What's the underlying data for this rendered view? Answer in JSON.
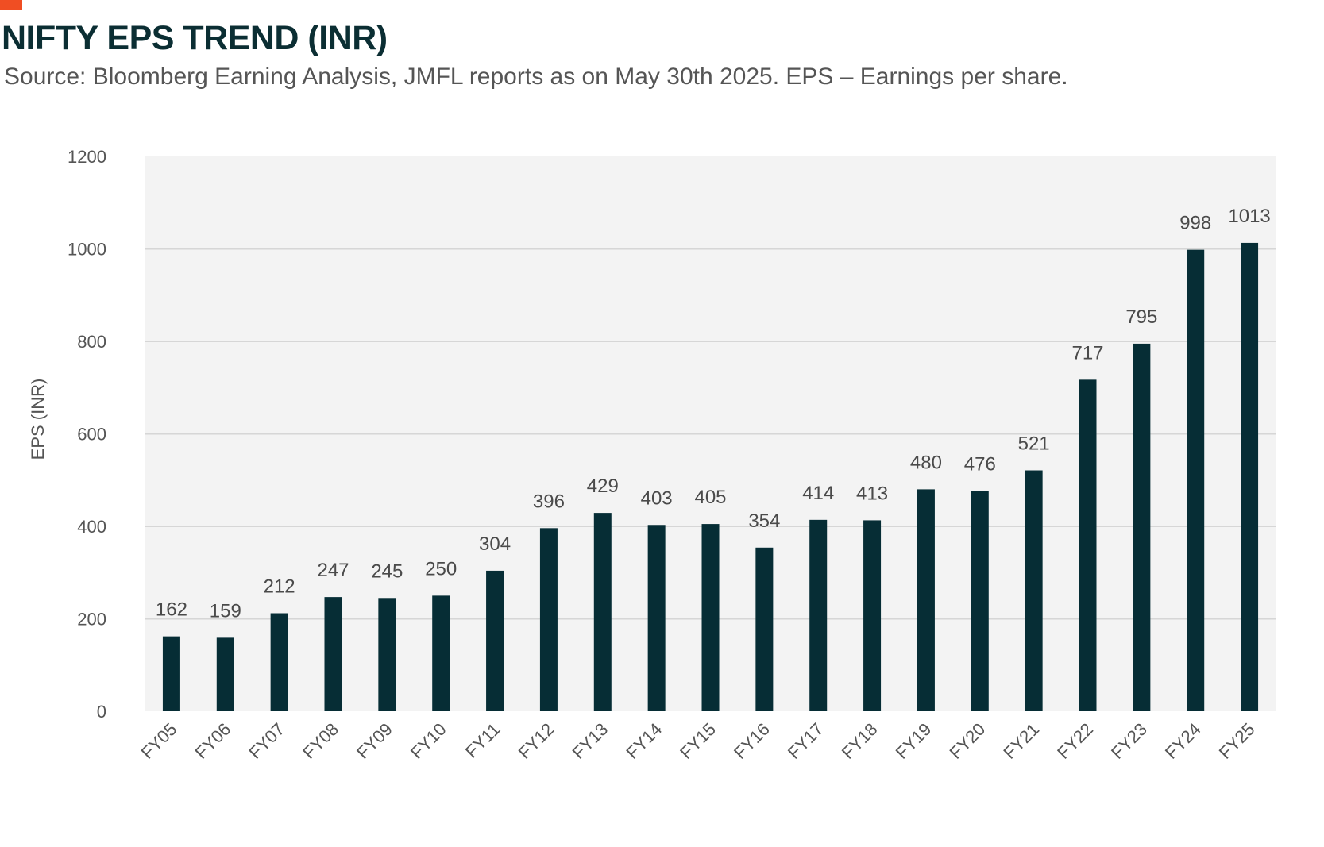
{
  "header": {
    "title": "NIFTY EPS TREND (INR)",
    "subtitle": "Source: Bloomberg Earning Analysis, JMFL reports as on May 30th 2025. EPS – Earnings per share.",
    "accent_color": "#f04e23"
  },
  "colors": {
    "bar": "#062d35",
    "plot_bg": "#f3f3f3",
    "grid": "#d6d6d6"
  },
  "chart_data": {
    "type": "bar",
    "title": "NIFTY EPS TREND (INR)",
    "xlabel": "",
    "ylabel": "EPS (INR)",
    "ylim": [
      0,
      1200
    ],
    "yticks": [
      0,
      200,
      400,
      600,
      800,
      1000,
      1200
    ],
    "grid": true,
    "categories": [
      "FY05",
      "FY06",
      "FY07",
      "FY08",
      "FY09",
      "FY10",
      "FY11",
      "FY12",
      "FY13",
      "FY14",
      "FY15",
      "FY16",
      "FY17",
      "FY18",
      "FY19",
      "FY20",
      "FY21",
      "FY22",
      "FY23",
      "FY24",
      "FY25"
    ],
    "values": [
      162,
      159,
      212,
      247,
      245,
      250,
      304,
      396,
      429,
      403,
      405,
      354,
      414,
      413,
      480,
      476,
      521,
      717,
      795,
      998,
      1013
    ]
  }
}
